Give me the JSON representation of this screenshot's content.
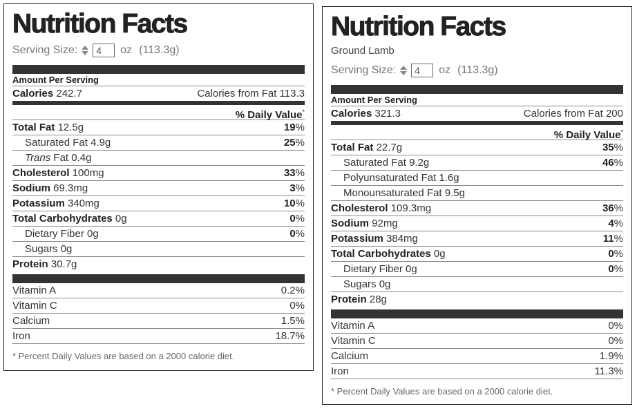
{
  "left": {
    "title": "Nutrition Facts",
    "serving_label": "Serving Size:",
    "serving_value": "4",
    "serving_unit": "oz",
    "serving_grams": "(113.3g)",
    "amount_per_serving": "Amount Per Serving",
    "calories_label": "Calories",
    "calories_value": "242.7",
    "calories_fat": "Calories from Fat 113.3",
    "daily_value_header": "% Daily Value",
    "daily_value_star": "*",
    "nutrients": [
      {
        "label": "Total Fat",
        "value": "12.5g",
        "pct": "19",
        "bold": true
      },
      {
        "label": "Saturated Fat",
        "value": "4.9g",
        "pct": "25"
      },
      {
        "label_italic": "Trans",
        "label": "Fat",
        "value": "0.4g",
        "pct": ""
      },
      {
        "label": "Cholesterol",
        "value": "100mg",
        "pct": "33",
        "bold": true
      },
      {
        "label": "Sodium",
        "value": "69.3mg",
        "pct": "3",
        "bold": true
      },
      {
        "label": "Potassium",
        "value": "340mg",
        "pct": "10",
        "bold": true
      },
      {
        "label": "Total Carbohydrates",
        "value": "0g",
        "pct": "0",
        "bold": true
      },
      {
        "label": "Dietary Fiber",
        "value": "0g",
        "pct": "0"
      },
      {
        "label": "Sugars",
        "value": "0g",
        "pct": ""
      },
      {
        "label": "Protein",
        "value": "30.7g",
        "pct": "",
        "bold": true
      }
    ],
    "vitamins": [
      {
        "label": "Vitamin A",
        "pct": "0.2%"
      },
      {
        "label": "Vitamin C",
        "pct": "0%"
      },
      {
        "label": "Calcium",
        "pct": "1.5%"
      },
      {
        "label": "Iron",
        "pct": "18.7%"
      }
    ],
    "footnote": "* Percent Daily Values are based on a 2000 calorie diet."
  },
  "right": {
    "title": "Nutrition Facts",
    "subtitle": "Ground Lamb",
    "serving_label": "Serving Size:",
    "serving_value": "4",
    "serving_unit": "oz",
    "serving_grams": "(113.3g)",
    "amount_per_serving": "Amount Per Serving",
    "calories_label": "Calories",
    "calories_value": "321.3",
    "calories_fat": "Calories from Fat 200",
    "daily_value_header": "% Daily Value",
    "daily_value_star": "*",
    "nutrients": [
      {
        "label": "Total Fat",
        "value": "22.7g",
        "pct": "35",
        "bold": true
      },
      {
        "label": "Saturated Fat",
        "value": "9.2g",
        "pct": "46"
      },
      {
        "label": "Polyunsaturated Fat",
        "value": "1.6g",
        "pct": ""
      },
      {
        "label": "Monounsaturated Fat",
        "value": "9.5g",
        "pct": ""
      },
      {
        "label": "Cholesterol",
        "value": "109.3mg",
        "pct": "36",
        "bold": true
      },
      {
        "label": "Sodium",
        "value": "92mg",
        "pct": "4",
        "bold": true
      },
      {
        "label": "Potassium",
        "value": "384mg",
        "pct": "11",
        "bold": true
      },
      {
        "label": "Total Carbohydrates",
        "value": "0g",
        "pct": "0",
        "bold": true
      },
      {
        "label": "Dietary Fiber",
        "value": "0g",
        "pct": "0"
      },
      {
        "label": "Sugars",
        "value": "0g",
        "pct": ""
      },
      {
        "label": "Protein",
        "value": "28g",
        "pct": "",
        "bold": true
      }
    ],
    "vitamins": [
      {
        "label": "Vitamin A",
        "pct": "0%"
      },
      {
        "label": "Vitamin C",
        "pct": "0%"
      },
      {
        "label": "Calcium",
        "pct": "1.9%"
      },
      {
        "label": "Iron",
        "pct": "11.3%"
      }
    ],
    "footnote": "* Percent Daily Values are based on a 2000 calorie diet."
  }
}
